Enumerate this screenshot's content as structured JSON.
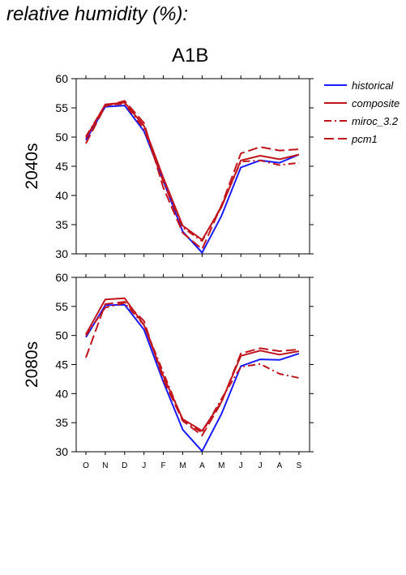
{
  "page_title": "relative humidity (%):",
  "scenario": "A1B",
  "colors": {
    "historical": "#1a1aff",
    "model": "#c0141c"
  },
  "chart_data": [
    {
      "type": "line",
      "row_label": "2040s",
      "categories": [
        "O",
        "N",
        "D",
        "J",
        "F",
        "M",
        "A",
        "M",
        "J",
        "J",
        "A",
        "S"
      ],
      "ylim": [
        30,
        60
      ],
      "yticks": [
        30,
        35,
        40,
        45,
        50,
        55,
        60
      ],
      "legend": "right",
      "series": [
        {
          "name": "historical",
          "style": "solid",
          "color": "#1a1aff",
          "values": [
            49.5,
            55.2,
            55.4,
            51.0,
            42.5,
            33.8,
            30.2,
            36.5,
            44.8,
            46.0,
            45.6,
            47.0
          ]
        },
        {
          "name": "composite",
          "style": "solid",
          "color": "#c0141c",
          "values": [
            49.8,
            55.6,
            55.9,
            51.9,
            43.0,
            34.8,
            32.4,
            38.0,
            46.0,
            46.8,
            46.2,
            47.0
          ]
        },
        {
          "name": "miroc_3.2",
          "style": "dashdot",
          "color": "#c0141c",
          "values": [
            50.1,
            55.5,
            55.7,
            51.4,
            42.3,
            34.5,
            32.2,
            38.2,
            45.8,
            46.0,
            45.2,
            45.6
          ]
        },
        {
          "name": "pcm1",
          "style": "longdash",
          "color": "#c0141c",
          "values": [
            48.9,
            55.3,
            56.2,
            52.4,
            41.3,
            33.6,
            30.8,
            38.3,
            47.2,
            48.3,
            47.7,
            47.9
          ]
        }
      ]
    },
    {
      "type": "line",
      "row_label": "2080s",
      "categories": [
        "O",
        "N",
        "D",
        "J",
        "F",
        "M",
        "A",
        "M",
        "J",
        "J",
        "A",
        "S"
      ],
      "ylim": [
        30,
        60
      ],
      "yticks": [
        30,
        35,
        40,
        45,
        50,
        55,
        60
      ],
      "series": [
        {
          "name": "historical",
          "style": "solid",
          "color": "#1a1aff",
          "values": [
            49.7,
            55.2,
            55.3,
            51.0,
            42.0,
            33.8,
            30.1,
            36.5,
            44.7,
            45.9,
            45.8,
            46.9
          ]
        },
        {
          "name": "composite",
          "style": "solid",
          "color": "#c0141c",
          "values": [
            50.2,
            56.2,
            56.4,
            51.8,
            43.0,
            35.6,
            33.6,
            38.6,
            46.5,
            47.4,
            46.7,
            47.3
          ]
        },
        {
          "name": "miroc_3.2",
          "style": "dashdot",
          "color": "#c0141c",
          "values": [
            50.0,
            54.8,
            55.6,
            51.8,
            43.6,
            35.4,
            33.3,
            39.1,
            44.6,
            45.1,
            43.4,
            42.7
          ]
        },
        {
          "name": "pcm1",
          "style": "longdash",
          "color": "#c0141c",
          "values": [
            46.2,
            55.4,
            55.8,
            52.5,
            42.4,
            35.3,
            32.8,
            38.5,
            46.9,
            47.8,
            47.3,
            47.6
          ]
        }
      ]
    }
  ]
}
